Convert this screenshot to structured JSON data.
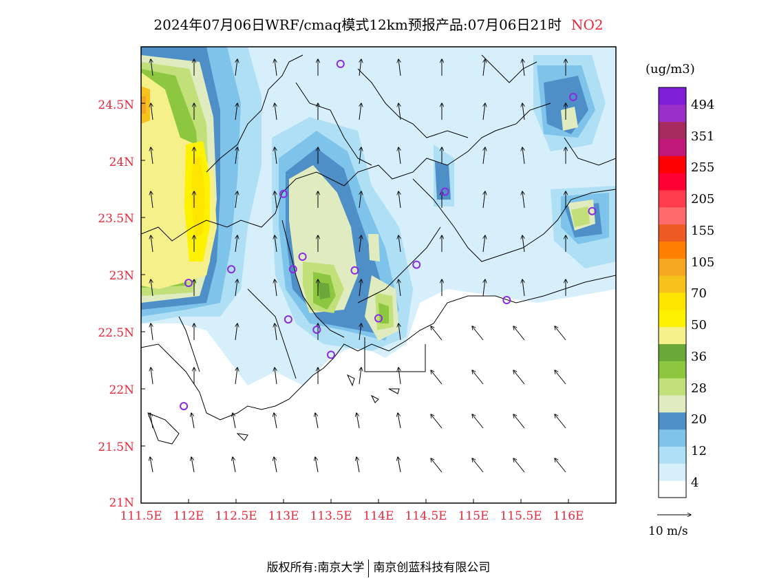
{
  "title": {
    "main": "2024年07月06日WRF/cmaq模式12km预报产品:07月06日21时",
    "pollutant": "NO2"
  },
  "map": {
    "lat_labels": [
      "24.5N",
      "24N",
      "23.5N",
      "23N",
      "22.5N",
      "22N",
      "21.5N",
      "21N"
    ],
    "lon_labels": [
      "111.5E",
      "112E",
      "112.5E",
      "113E",
      "113.5E",
      "114E",
      "114.5E",
      "115E",
      "115.5E",
      "116E"
    ],
    "lon_range": [
      111.5,
      116.5
    ],
    "lat_range": [
      21.0,
      25.0
    ],
    "colors": {
      "frame": "#000000",
      "axis_label": "#e8283c",
      "station_marker": "#8a2be2"
    }
  },
  "legend": {
    "unit": "(ug/m3)",
    "labels": [
      "494",
      "351",
      "255",
      "205",
      "155",
      "105",
      "70",
      "50",
      "36",
      "28",
      "20",
      "12",
      "4"
    ],
    "colors": [
      "#ffffff",
      "#d6effb",
      "#aedff5",
      "#7ec3ea",
      "#4d8fc6",
      "#e0ecc0",
      "#c1e07a",
      "#8dc63f",
      "#6aa83a",
      "#f5f08a",
      "#fff200",
      "#fde500",
      "#f7c21c",
      "#f5a623",
      "#ff7f00",
      "#ee5a24",
      "#ff6b6b",
      "#ff3b4e",
      "#ff0033",
      "#ff0000",
      "#c2177a",
      "#a52a5e",
      "#9b30c8",
      "#7d1fd6"
    ]
  },
  "wind_scale": {
    "label": "10 m/s"
  },
  "footer": {
    "left": "版权所有:南京大学",
    "right": "南京创蓝科技有限公司"
  }
}
